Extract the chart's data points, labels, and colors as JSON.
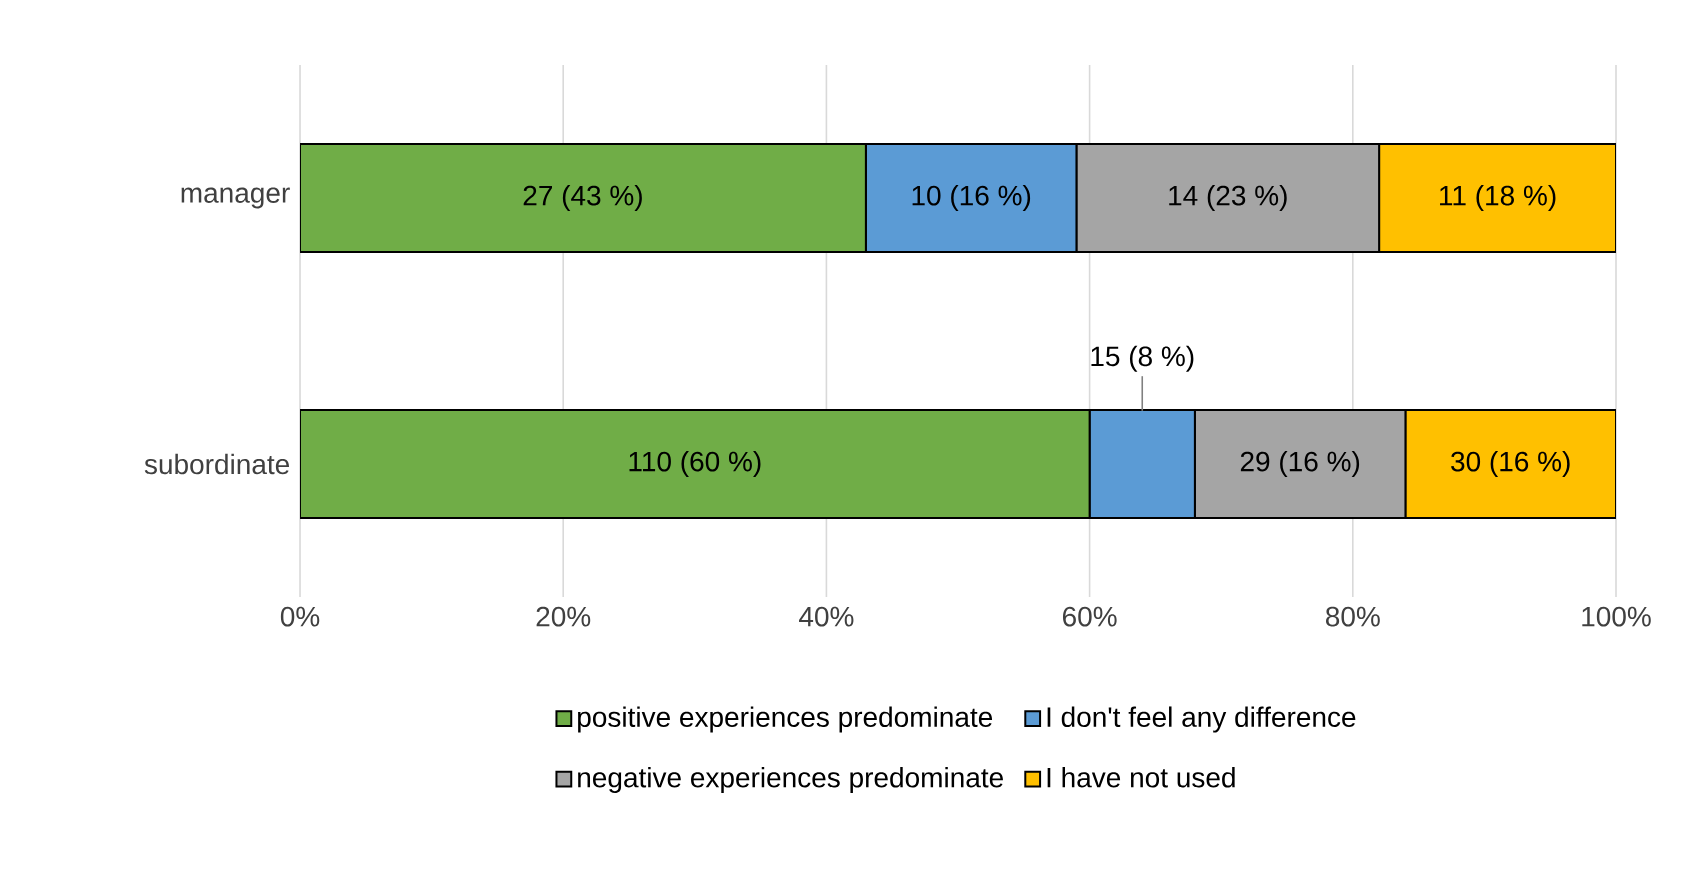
{
  "chart_data": {
    "type": "bar",
    "orientation": "horizontal",
    "stacked": true,
    "categories": [
      "manager",
      "subordinate"
    ],
    "series": [
      {
        "name": "positive experiences predominate",
        "color": "#70ad47",
        "values": [
          43,
          60
        ],
        "value_labels": [
          "27 (43 %)",
          "110 (60 %)"
        ]
      },
      {
        "name": "I don't feel any difference",
        "color": "#5b9bd5",
        "values": [
          16,
          8
        ],
        "value_labels": [
          "10 (16 %)",
          "15 (8 %)"
        ]
      },
      {
        "name": "negative experiences predominate",
        "color": "#a5a5a5",
        "values": [
          23,
          16
        ],
        "value_labels": [
          "14 (23 %)",
          "29 (16 %)"
        ]
      },
      {
        "name": "I have not used",
        "color": "#ffc000",
        "values": [
          18,
          16
        ],
        "value_labels": [
          "11 (18 %)",
          "30 (16 %)"
        ]
      }
    ],
    "xlim": [
      0,
      100
    ],
    "xticks": [
      {
        "value": 0,
        "label": "0%"
      },
      {
        "value": 20,
        "label": "20%"
      },
      {
        "value": 40,
        "label": "40%"
      },
      {
        "value": 60,
        "label": "60%"
      },
      {
        "value": 80,
        "label": "80%"
      },
      {
        "value": 100,
        "label": "100%"
      }
    ],
    "grid": "x",
    "legend": "bottom"
  }
}
